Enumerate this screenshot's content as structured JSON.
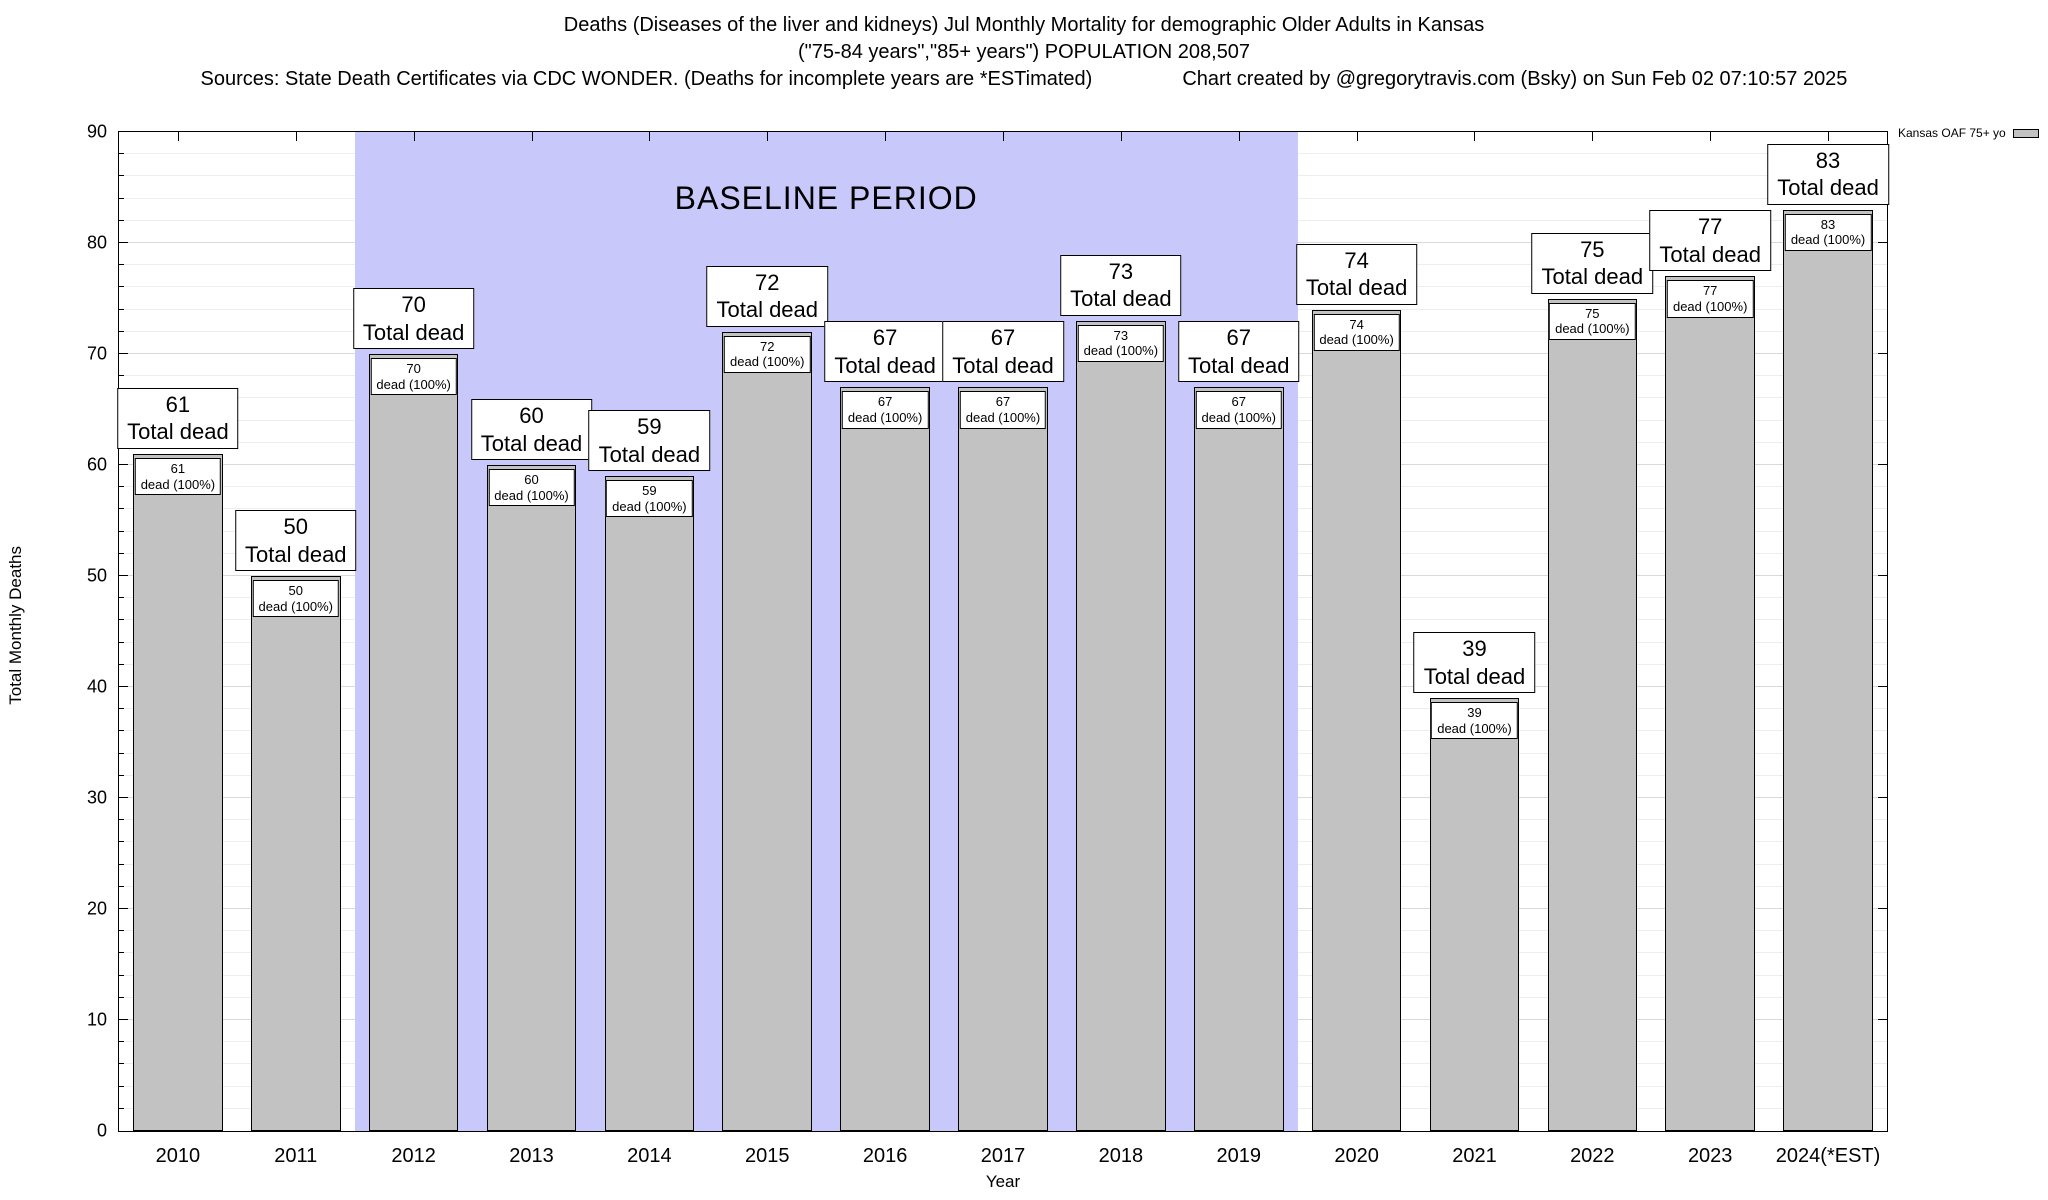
{
  "titles": {
    "line1": "Deaths (Diseases of the liver and kidneys) Jul Monthly Mortality for demographic Older Adults in Kansas",
    "line2": "(\"75-84 years\",\"85+ years\") POPULATION 208,507",
    "line3_left": "Sources: State Death Certificates via CDC WONDER. (Deaths for incomplete years are *ESTimated)",
    "line3_right": "Chart created by @gregorytravis.com (Bsky) on Sun Feb 02 07:10:57 2025"
  },
  "legend": {
    "label": "Kansas OAF 75+ yo",
    "swatch_color": "#c2c2c2"
  },
  "baseline": {
    "label": "BASELINE PERIOD",
    "start_category": "2012",
    "end_category": "2019",
    "band_color": "#c8c8fa"
  },
  "axes": {
    "ylabel": "Total Monthly Deaths",
    "xlabel": "Year",
    "ymin": 0,
    "ymax": 90,
    "ytick_step": 10,
    "minor_step": 2
  },
  "labels": {
    "total_dead": "Total dead",
    "dead_pct": "dead (100%)"
  },
  "chart_data": {
    "type": "bar",
    "title": "Deaths (Diseases of the liver and kidneys) Jul Monthly Mortality for demographic Older Adults in Kansas",
    "subtitle": "(\"75-84 years\",\"85+ years\") POPULATION 208,507",
    "categories": [
      "2010",
      "2011",
      "2012",
      "2013",
      "2014",
      "2015",
      "2016",
      "2017",
      "2018",
      "2019",
      "2020",
      "2021",
      "2022",
      "2023",
      "2024(*EST)"
    ],
    "values": [
      61,
      50,
      70,
      60,
      59,
      72,
      67,
      67,
      73,
      67,
      74,
      39,
      75,
      77,
      83
    ],
    "xlabel": "Year",
    "ylabel": "Total Monthly Deaths",
    "ylim": [
      0,
      90
    ],
    "grid": true,
    "bar_color": "#c2c2c2",
    "baseline_period": [
      "2012",
      "2019"
    ],
    "legend_entries": [
      "Kansas OAF 75+ yo"
    ],
    "legend_position": "top-right-outside",
    "annotations": [
      "BASELINE PERIOD"
    ]
  }
}
